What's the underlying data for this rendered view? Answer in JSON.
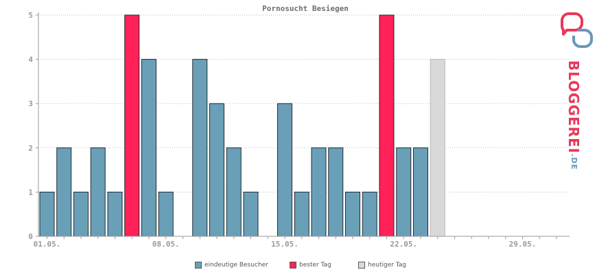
{
  "chart_data": {
    "type": "bar",
    "title": "Pornosucht Besiegen",
    "ylim": [
      0,
      5
    ],
    "yticks": [
      "0",
      "1",
      "2",
      "3",
      "4",
      "5"
    ],
    "xtick_labels": [
      "01.05.",
      "08.05.",
      "15.05.",
      "22.05.",
      "29.05."
    ],
    "day_slots": 31,
    "grid": true,
    "bars": [
      {
        "day": 1,
        "value": 1,
        "kind": "visitors"
      },
      {
        "day": 2,
        "value": 2,
        "kind": "visitors"
      },
      {
        "day": 3,
        "value": 1,
        "kind": "visitors"
      },
      {
        "day": 4,
        "value": 2,
        "kind": "visitors"
      },
      {
        "day": 5,
        "value": 1,
        "kind": "visitors"
      },
      {
        "day": 6,
        "value": 5,
        "kind": "best"
      },
      {
        "day": 7,
        "value": 4,
        "kind": "visitors"
      },
      {
        "day": 8,
        "value": 1,
        "kind": "visitors"
      },
      {
        "day": 10,
        "value": 4,
        "kind": "visitors"
      },
      {
        "day": 11,
        "value": 3,
        "kind": "visitors"
      },
      {
        "day": 12,
        "value": 2,
        "kind": "visitors"
      },
      {
        "day": 13,
        "value": 1,
        "kind": "visitors"
      },
      {
        "day": 15,
        "value": 3,
        "kind": "visitors"
      },
      {
        "day": 16,
        "value": 1,
        "kind": "visitors"
      },
      {
        "day": 17,
        "value": 2,
        "kind": "visitors"
      },
      {
        "day": 18,
        "value": 2,
        "kind": "visitors"
      },
      {
        "day": 19,
        "value": 1,
        "kind": "visitors"
      },
      {
        "day": 20,
        "value": 1,
        "kind": "visitors"
      },
      {
        "day": 21,
        "value": 5,
        "kind": "best"
      },
      {
        "day": 22,
        "value": 2,
        "kind": "visitors"
      },
      {
        "day": 23,
        "value": 2,
        "kind": "visitors"
      },
      {
        "day": 24,
        "value": 4,
        "kind": "today"
      }
    ],
    "legend": [
      {
        "key": "visitors",
        "label": "eindeutige Besucher",
        "color": "#6a9fb8"
      },
      {
        "key": "best",
        "label": "bester Tag",
        "color": "#ff2157"
      },
      {
        "key": "today",
        "label": "heutiger Tag",
        "color": "#d9d9d9"
      }
    ],
    "legend_position": "bottom"
  },
  "logo": {
    "text": "BLOGGEREI",
    "suffix": ".DE"
  }
}
